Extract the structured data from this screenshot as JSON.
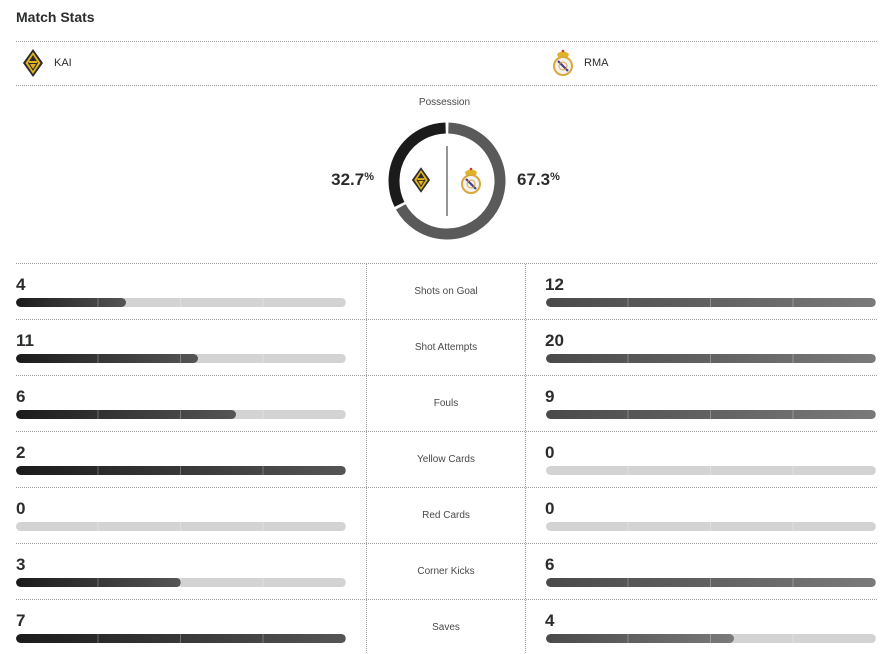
{
  "header": {
    "title": "Match Stats"
  },
  "teams": {
    "home": {
      "abbr": "KAI",
      "crest_icon": "kai-crest-icon",
      "color": "#1b1b1b"
    },
    "away": {
      "abbr": "RMA",
      "crest_icon": "rma-crest-icon",
      "color": "#5a5a5a"
    }
  },
  "possession": {
    "label": "Possession",
    "home_pct": "32.7",
    "away_pct": "67.3",
    "unit": "%",
    "home_value": 32.7,
    "away_value": 67.3
  },
  "stats": [
    {
      "label": "Shots on Goal",
      "home": "4",
      "away": "12",
      "home_fill": 0.333,
      "away_fill": 1.0
    },
    {
      "label": "Shot Attempts",
      "home": "11",
      "away": "20",
      "home_fill": 0.55,
      "away_fill": 1.0
    },
    {
      "label": "Fouls",
      "home": "6",
      "away": "9",
      "home_fill": 0.667,
      "away_fill": 1.0
    },
    {
      "label": "Yellow Cards",
      "home": "2",
      "away": "0",
      "home_fill": 1.0,
      "away_fill": 0.0
    },
    {
      "label": "Red Cards",
      "home": "0",
      "away": "0",
      "home_fill": 0.0,
      "away_fill": 0.0
    },
    {
      "label": "Corner Kicks",
      "home": "3",
      "away": "6",
      "home_fill": 0.5,
      "away_fill": 1.0
    },
    {
      "label": "Saves",
      "home": "7",
      "away": "4",
      "home_fill": 1.0,
      "away_fill": 0.571
    }
  ]
}
